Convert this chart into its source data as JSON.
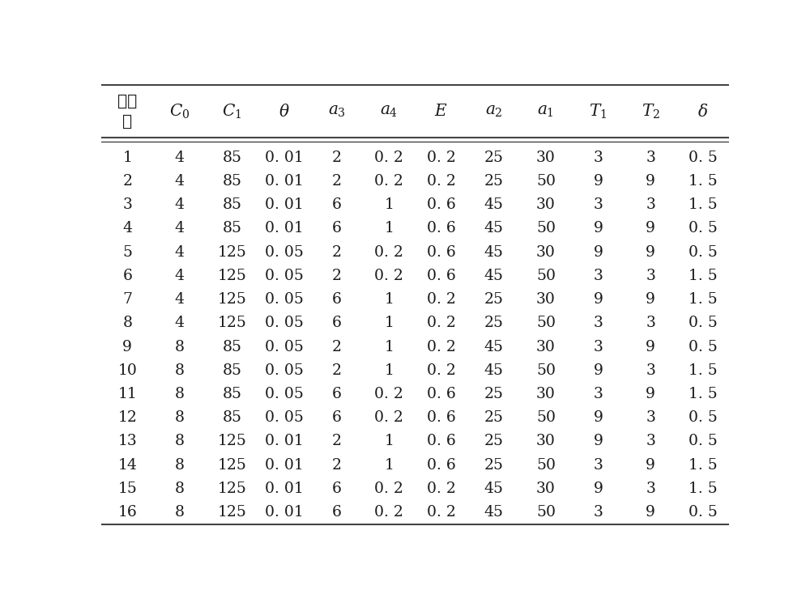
{
  "header_display": [
    "试验\n号",
    "$C_0$",
    "$C_1$",
    "$\\theta$",
    "$a_3$",
    "$a_4$",
    "$E$",
    "$a_2$",
    "$a_1$",
    "$T_1$",
    "$T_2$",
    "$\\delta$"
  ],
  "rows": [
    [
      "1",
      "4",
      "85",
      "0. 01",
      "2",
      "0. 2",
      "0. 2",
      "25",
      "30",
      "3",
      "3",
      "0. 5"
    ],
    [
      "2",
      "4",
      "85",
      "0. 01",
      "2",
      "0. 2",
      "0. 2",
      "25",
      "50",
      "9",
      "9",
      "1. 5"
    ],
    [
      "3",
      "4",
      "85",
      "0. 01",
      "6",
      "1",
      "0. 6",
      "45",
      "30",
      "3",
      "3",
      "1. 5"
    ],
    [
      "4",
      "4",
      "85",
      "0. 01",
      "6",
      "1",
      "0. 6",
      "45",
      "50",
      "9",
      "9",
      "0. 5"
    ],
    [
      "5",
      "4",
      "125",
      "0. 05",
      "2",
      "0. 2",
      "0. 6",
      "45",
      "30",
      "9",
      "9",
      "0. 5"
    ],
    [
      "6",
      "4",
      "125",
      "0. 05",
      "2",
      "0. 2",
      "0. 6",
      "45",
      "50",
      "3",
      "3",
      "1. 5"
    ],
    [
      "7",
      "4",
      "125",
      "0. 05",
      "6",
      "1",
      "0. 2",
      "25",
      "30",
      "9",
      "9",
      "1. 5"
    ],
    [
      "8",
      "4",
      "125",
      "0. 05",
      "6",
      "1",
      "0. 2",
      "25",
      "50",
      "3",
      "3",
      "0. 5"
    ],
    [
      "9",
      "8",
      "85",
      "0. 05",
      "2",
      "1",
      "0. 2",
      "45",
      "30",
      "3",
      "9",
      "0. 5"
    ],
    [
      "10",
      "8",
      "85",
      "0. 05",
      "2",
      "1",
      "0. 2",
      "45",
      "50",
      "9",
      "3",
      "1. 5"
    ],
    [
      "11",
      "8",
      "85",
      "0. 05",
      "6",
      "0. 2",
      "0. 6",
      "25",
      "30",
      "3",
      "9",
      "1. 5"
    ],
    [
      "12",
      "8",
      "85",
      "0. 05",
      "6",
      "0. 2",
      "0. 6",
      "25",
      "50",
      "9",
      "3",
      "0. 5"
    ],
    [
      "13",
      "8",
      "125",
      "0. 01",
      "2",
      "1",
      "0. 6",
      "25",
      "30",
      "9",
      "3",
      "0. 5"
    ],
    [
      "14",
      "8",
      "125",
      "0. 01",
      "2",
      "1",
      "0. 6",
      "25",
      "50",
      "3",
      "9",
      "1. 5"
    ],
    [
      "15",
      "8",
      "125",
      "0. 01",
      "6",
      "0. 2",
      "0. 2",
      "45",
      "30",
      "9",
      "3",
      "1. 5"
    ],
    [
      "16",
      "8",
      "125",
      "0. 01",
      "6",
      "0. 2",
      "0. 2",
      "45",
      "50",
      "3",
      "9",
      "0. 5"
    ]
  ],
  "background_color": "#ffffff",
  "text_color": "#1a1a1a",
  "line_color": "#444444",
  "font_size": 13.5,
  "header_font_size": 14.5
}
